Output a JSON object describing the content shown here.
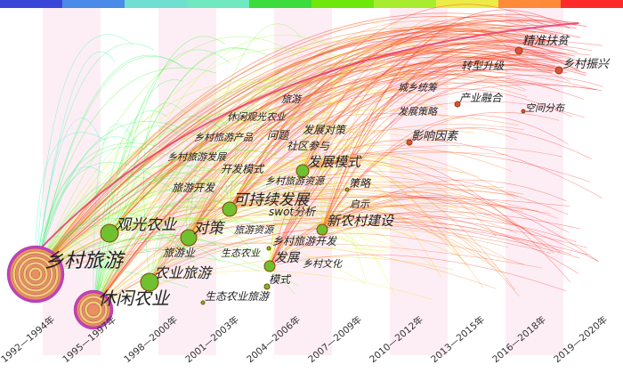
{
  "periods": [
    "1992—1994年",
    "1995—1997年",
    "1998—2000年",
    "2001—2003年",
    "2004—2006年",
    "2007—2009年",
    "2010—2012年",
    "2013—2015年",
    "2016—2018年",
    "2019—2020年"
  ],
  "nodes": [
    {
      "label": "乡村旅游"
    },
    {
      "label": "休闲农业"
    },
    {
      "label": "观光农业"
    },
    {
      "label": "农业旅游"
    },
    {
      "label": "对策"
    },
    {
      "label": "可持续发展"
    },
    {
      "label": "发展模式"
    },
    {
      "label": "新农村建设"
    },
    {
      "label": "发展"
    },
    {
      "label": "模式"
    },
    {
      "label": "精准扶贫"
    },
    {
      "label": "乡村振兴"
    },
    {
      "label": "转型升级"
    },
    {
      "label": "城乡统筹"
    },
    {
      "label": "产业融合"
    },
    {
      "label": "空间分布"
    },
    {
      "label": "发展策略"
    },
    {
      "label": "影响因素"
    },
    {
      "label": "旅游"
    },
    {
      "label": "休闲观光农业"
    },
    {
      "label": "发展对策"
    },
    {
      "label": "问题"
    },
    {
      "label": "乡村旅游产品"
    },
    {
      "label": "社区参与"
    },
    {
      "label": "乡村旅游发展"
    },
    {
      "label": "开发模式"
    },
    {
      "label": "乡村旅游资源"
    },
    {
      "label": "策略"
    },
    {
      "label": "旅游开发"
    },
    {
      "label": "启示"
    },
    {
      "label": "swot分析"
    },
    {
      "label": "旅游资源"
    },
    {
      "label": "乡村旅游开发"
    },
    {
      "label": "旅游业"
    },
    {
      "label": "生态农业"
    },
    {
      "label": "乡村文化"
    },
    {
      "label": "生态农业旅游"
    }
  ]
}
